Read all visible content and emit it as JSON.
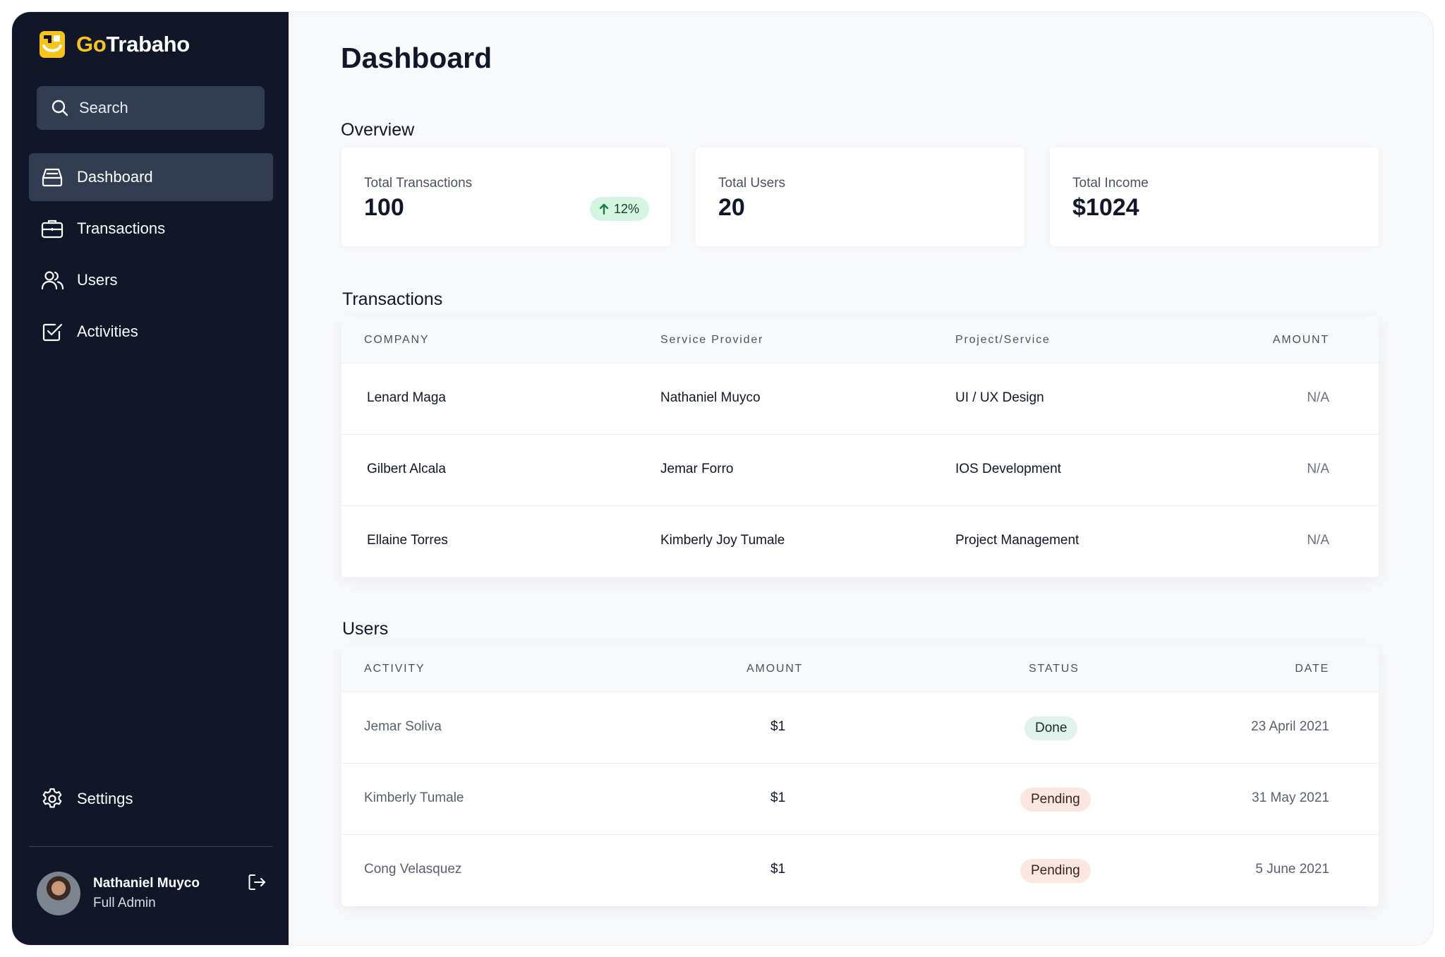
{
  "brand": {
    "name_part1": "Go",
    "name_part2": "Trabaho",
    "accent_color": "#f8c41c"
  },
  "search": {
    "placeholder": "Search"
  },
  "sidebar": {
    "items": [
      {
        "label": "Dashboard",
        "icon": "inbox-tray-icon",
        "active": true
      },
      {
        "label": "Transactions",
        "icon": "briefcase-icon",
        "active": false
      },
      {
        "label": "Users",
        "icon": "users-icon",
        "active": false
      },
      {
        "label": "Activities",
        "icon": "check-square-icon",
        "active": false
      }
    ],
    "settings_label": "Settings"
  },
  "profile": {
    "name": "Nathaniel Muyco",
    "role": "Full Admin"
  },
  "page": {
    "title": "Dashboard"
  },
  "overview": {
    "title": "Overview",
    "cards": [
      {
        "label": "Total Transactions",
        "value": "100",
        "change": "12%"
      },
      {
        "label": "Total Users",
        "value": "20"
      },
      {
        "label": "Total Income",
        "value": "$1024"
      }
    ]
  },
  "transactions": {
    "title": "Transactions",
    "columns": [
      "COMPANY",
      "Service Provider",
      "Project/Service",
      "AMOUNT"
    ],
    "rows": [
      [
        "Lenard Maga",
        "Nathaniel Muyco",
        "UI / UX Design",
        "N/A"
      ],
      [
        "Gilbert Alcala",
        "Jemar Forro",
        "IOS Development",
        "N/A"
      ],
      [
        "Ellaine Torres",
        "Kimberly Joy Tumale",
        "Project Management",
        "N/A"
      ]
    ]
  },
  "users": {
    "title": "Users",
    "columns": [
      "ACTIVITY",
      "AMOUNT",
      "STATUS",
      "DATE"
    ],
    "rows": [
      [
        "Jemar Soliva",
        "$1",
        "Done",
        "23 April 2021"
      ],
      [
        "Kimberly Tumale",
        "$1",
        "Pending",
        "31 May 2021"
      ],
      [
        "Cong Velasquez",
        "$1",
        "Pending",
        "5 June 2021"
      ]
    ]
  },
  "colors": {
    "sidebar_bg": "#111729",
    "sidebar_active": "#323d52",
    "status_done_bg": "#def3ec",
    "status_pending_bg": "#fbe6e1",
    "trend_up_bg": "#d5f5e3"
  }
}
